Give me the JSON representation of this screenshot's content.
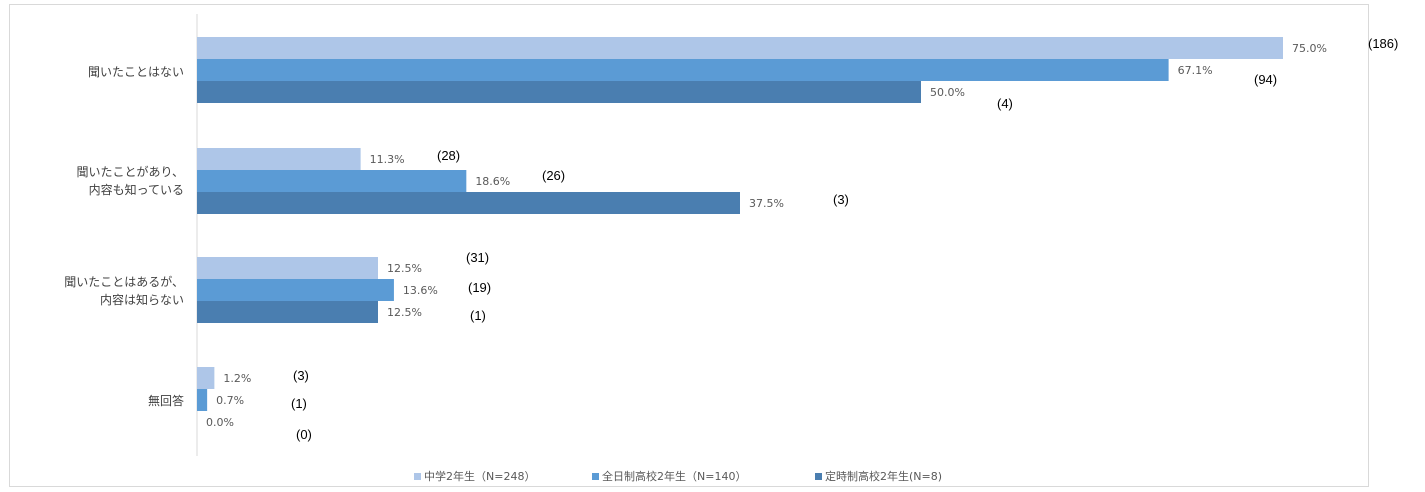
{
  "chart_data": {
    "type": "bar",
    "orientation": "horizontal",
    "categories": [
      [
        "聞いたことはない"
      ],
      [
        "聞いたことがあり、",
        "内容も知っている"
      ],
      [
        "聞いたことはあるが、",
        "内容は知らない"
      ],
      [
        "無回答"
      ]
    ],
    "series": [
      {
        "name": "中学2年生（N=248）",
        "color": "#aec6e8",
        "values": [
          75.0,
          11.3,
          12.5,
          1.2
        ],
        "value_labels": [
          "75.0%",
          "11.3%",
          "12.5%",
          "1.2%"
        ],
        "counts": [
          "(186)",
          "(28)",
          "(31)",
          "(3)"
        ]
      },
      {
        "name": "全日制高校2年生（N=140）",
        "color": "#5b9bd5",
        "values": [
          67.1,
          18.6,
          13.6,
          0.7
        ],
        "value_labels": [
          "67.1%",
          "18.6%",
          "13.6%",
          "0.7%"
        ],
        "counts": [
          "(94)",
          "(26)",
          "(19)",
          "(1)"
        ]
      },
      {
        "name": "定時制高校2年生(N=8)",
        "color": "#4a7eb0",
        "values": [
          50.0,
          37.5,
          12.5,
          0.0
        ],
        "value_labels": [
          "50.0%",
          "37.5%",
          "12.5%",
          "0.0%"
        ],
        "counts": [
          "(4)",
          "(3)",
          "(1)",
          "(0)"
        ]
      }
    ],
    "xlim": [
      0,
      75
    ],
    "grid": false,
    "legend_position": "bottom"
  }
}
